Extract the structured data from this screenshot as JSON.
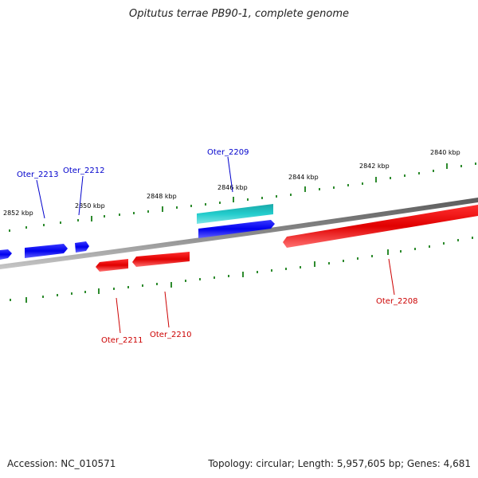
{
  "title": "Opitutus terrae PB90-1, complete genome",
  "footer": {
    "accession": "Accession: NC_010571",
    "topology": "Topology: circular; Length: 5,957,605 bp; Genes: 4,681"
  },
  "scale_labels": [
    "2852 kbp",
    "2850 kbp",
    "2848 kbp",
    "2846 kbp",
    "2844 kbp",
    "2842 kbp",
    "2840 kbp"
  ],
  "genes": [
    {
      "name": "Oter_2213",
      "strand": "+",
      "color": "#0000ee"
    },
    {
      "name": "Oter_2212",
      "strand": "+",
      "color": "#0000ee"
    },
    {
      "name": "Oter_2209",
      "strand": "+",
      "color": "#0000ee"
    },
    {
      "name": "Oter_2211",
      "strand": "-",
      "color": "#dd0000"
    },
    {
      "name": "Oter_2210",
      "strand": "-",
      "color": "#dd0000"
    },
    {
      "name": "Oter_2208",
      "strand": "-",
      "color": "#dd0000"
    }
  ],
  "colors": {
    "forward": "#0000ff",
    "reverse": "#ff0000",
    "rna": "#22cccc",
    "backbone": "#808080",
    "ticks": "#2e8b2e"
  }
}
